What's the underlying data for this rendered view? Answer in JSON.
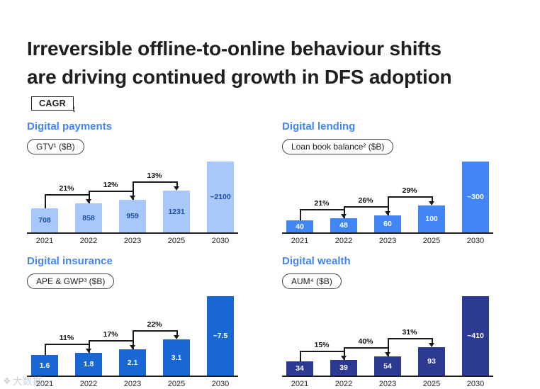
{
  "slide": {
    "title_line1": "Irreversible offline-to-online behaviour shifts",
    "title_line2": "are driving continued growth in DFS adoption",
    "cagr_label": "CAGR",
    "cagr_arrow": "↓",
    "watermark_icon": "❖",
    "watermark_text": "大数据"
  },
  "theme": {
    "accent_blue": "#4285F4",
    "payments_bar": "#A8C7FA",
    "payments_label": "#1d4fa1",
    "lending_bar": "#4285F4",
    "insurance_bar": "#1967D2",
    "wealth_bar": "#2d3a92",
    "axis_color": "#1f1f1f"
  },
  "chart_data": [
    {
      "type": "bar",
      "title": "Digital payments",
      "metric": "GTV¹ ($B)",
      "categories": [
        "2021",
        "2022",
        "2023",
        "2025",
        "2030"
      ],
      "values": [
        708,
        858,
        959,
        1231,
        2100
      ],
      "value_labels": [
        "708",
        "858",
        "959",
        "1231",
        "~2100"
      ],
      "cagr": [
        "21%",
        "12%",
        "13%"
      ],
      "bar_color": "#A8C7FA",
      "value_label_color": "#1d4fa1",
      "ylim": [
        0,
        2100
      ],
      "grid": false
    },
    {
      "type": "bar",
      "title": "Digital lending",
      "metric": "Loan book balance² ($B)",
      "categories": [
        "2021",
        "2022",
        "2023",
        "2025",
        "2030"
      ],
      "values": [
        40,
        48,
        60,
        100,
        300
      ],
      "value_labels": [
        "40",
        "48",
        "60",
        "100",
        "~300"
      ],
      "cagr": [
        "21%",
        "26%",
        "29%"
      ],
      "bar_color": "#4285F4",
      "value_label_color": "#ffffff",
      "ylim": [
        0,
        300
      ],
      "grid": false
    },
    {
      "type": "bar",
      "title": "Digital insurance",
      "metric": "APE & GWP³ ($B)",
      "categories": [
        "2021",
        "2022",
        "2023",
        "2025",
        "2030"
      ],
      "values": [
        1.6,
        1.8,
        2.1,
        3.1,
        7.5
      ],
      "value_labels": [
        "1.6",
        "1.8",
        "2.1",
        "3.1",
        "~7.5"
      ],
      "cagr": [
        "11%",
        "17%",
        "22%"
      ],
      "bar_color": "#1967D2",
      "value_label_color": "#ffffff",
      "ylim": [
        0,
        7.5
      ],
      "grid": false
    },
    {
      "type": "bar",
      "title": "Digital wealth",
      "metric": "AUM⁴ ($B)",
      "categories": [
        "2021",
        "2022",
        "2023",
        "2025",
        "2030"
      ],
      "values": [
        34,
        39,
        54,
        93,
        410
      ],
      "value_labels": [
        "34",
        "39",
        "54",
        "93",
        "~410"
      ],
      "cagr": [
        "15%",
        "40%",
        "31%"
      ],
      "bar_color": "#2d3a92",
      "value_label_color": "#ffffff",
      "ylim": [
        0,
        410
      ],
      "grid": false
    }
  ]
}
